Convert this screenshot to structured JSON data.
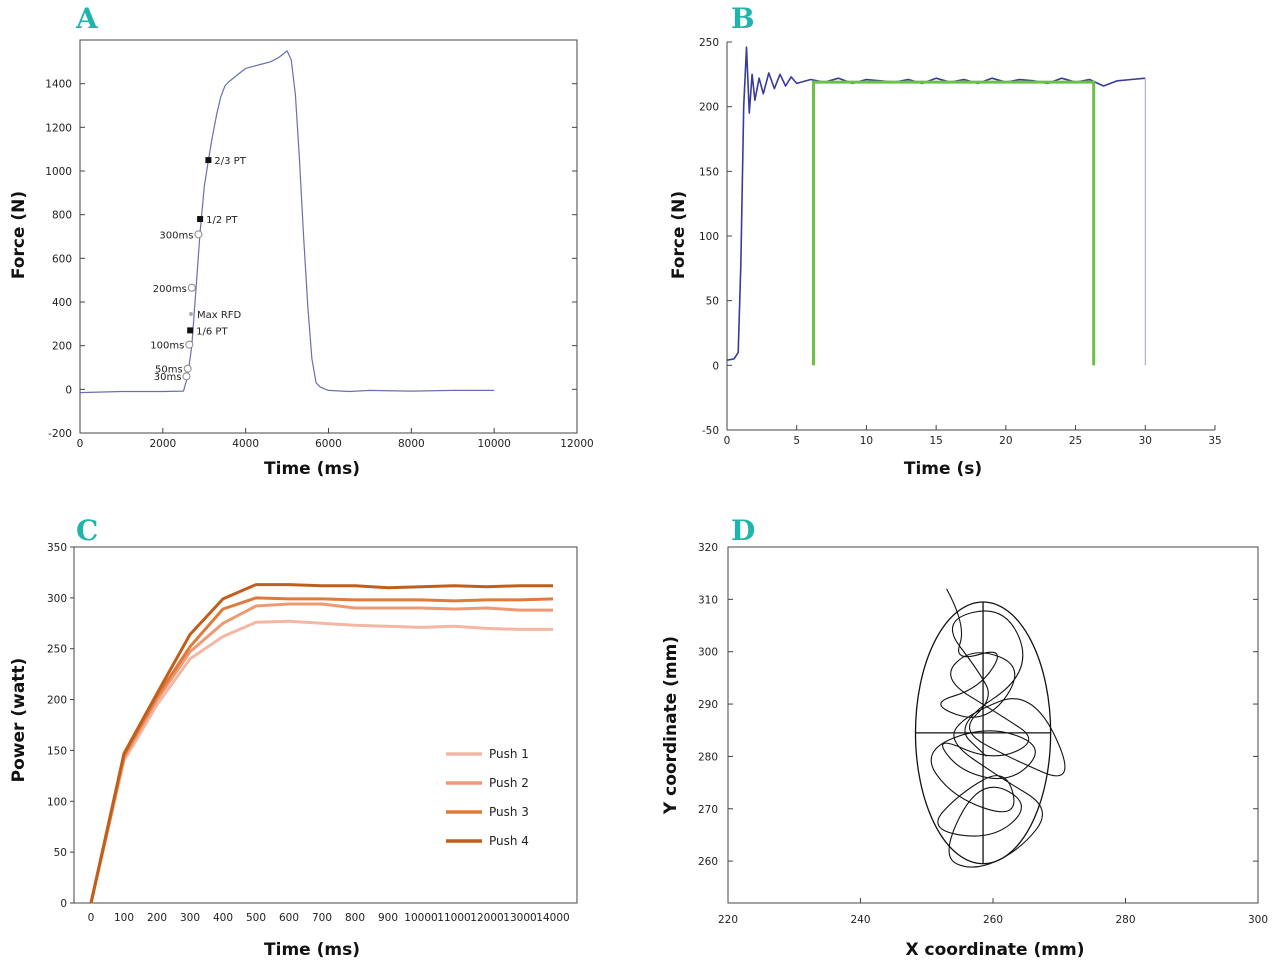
{
  "chart_data": [
    {
      "panel": "A",
      "type": "line",
      "xlabel": "Time (ms)",
      "ylabel": "Force (N)",
      "xlim": [
        0,
        12000
      ],
      "ylim": [
        -200,
        1600
      ],
      "xticks": [
        0,
        2000,
        4000,
        6000,
        8000,
        10000,
        12000
      ],
      "yticks": [
        -200,
        0,
        200,
        400,
        600,
        800,
        1000,
        1200,
        1400
      ],
      "series": [
        {
          "color": "#6a6fb0",
          "x": [
            0,
            1000,
            2000,
            2500,
            2600,
            2700,
            2800,
            2900,
            3000,
            3100,
            3200,
            3300,
            3400,
            3500,
            3600,
            3800,
            4000,
            4200,
            4400,
            4600,
            4800,
            5000,
            5100,
            5200,
            5300,
            5400,
            5500,
            5600,
            5700,
            5800,
            6000,
            6500,
            7000,
            8000,
            9000,
            10000
          ],
          "y": [
            -15,
            -10,
            -10,
            -8,
            60,
            200,
            460,
            720,
            930,
            1050,
            1160,
            1260,
            1340,
            1390,
            1410,
            1440,
            1470,
            1480,
            1490,
            1500,
            1520,
            1550,
            1510,
            1350,
            1050,
            700,
            380,
            140,
            30,
            10,
            -5,
            -10,
            -5,
            -8,
            -5,
            -5
          ]
        }
      ],
      "annotations": [
        {
          "label": "2/3 PT",
          "x": 3100,
          "y": 1050,
          "marker": "filled"
        },
        {
          "label": "1/2 PT",
          "x": 2900,
          "y": 780,
          "marker": "filled"
        },
        {
          "label": "300ms",
          "x": 2860,
          "y": 710,
          "marker": "open",
          "side": "left"
        },
        {
          "label": "200ms",
          "x": 2700,
          "y": 465,
          "marker": "open",
          "side": "left"
        },
        {
          "label": "Max RFD",
          "x": 2680,
          "y": 345,
          "marker": "dot"
        },
        {
          "label": "1/6 PT",
          "x": 2660,
          "y": 270,
          "marker": "filled"
        },
        {
          "label": "100ms",
          "x": 2640,
          "y": 205,
          "marker": "open",
          "side": "left"
        },
        {
          "label": "50ms",
          "x": 2600,
          "y": 95,
          "marker": "open",
          "side": "left"
        },
        {
          "label": "30ms",
          "x": 2570,
          "y": 60,
          "marker": "open",
          "side": "left"
        }
      ]
    },
    {
      "panel": "B",
      "type": "line",
      "xlabel": "Time (s)",
      "ylabel": "Force (N)",
      "xlim": [
        0,
        35
      ],
      "ylim": [
        -50,
        250
      ],
      "xticks": [
        0,
        5,
        10,
        15,
        20,
        25,
        30,
        35
      ],
      "yticks": [
        -50,
        0,
        50,
        100,
        150,
        200,
        250
      ],
      "series": [
        {
          "color": "#3a3a9a",
          "x": [
            0,
            0.5,
            0.8,
            1.0,
            1.2,
            1.4,
            1.6,
            1.8,
            2.0,
            2.3,
            2.6,
            3.0,
            3.4,
            3.8,
            4.2,
            4.6,
            5.0,
            6,
            7,
            8,
            9,
            10,
            11,
            12,
            13,
            14,
            15,
            16,
            17,
            18,
            19,
            20,
            21,
            22,
            23,
            24,
            25,
            26,
            27,
            28,
            29,
            30
          ],
          "y": [
            4,
            5,
            10,
            80,
            200,
            246,
            195,
            225,
            205,
            222,
            210,
            226,
            214,
            225,
            216,
            223,
            218,
            221,
            219,
            222,
            218,
            221,
            220,
            219,
            221,
            218,
            222,
            219,
            221,
            218,
            222,
            219,
            221,
            220,
            218,
            222,
            219,
            221,
            216,
            220,
            221,
            222
          ]
        }
      ],
      "window": {
        "color": "#6cc04a",
        "x_start": 6.2,
        "x_end": 26.3,
        "level": 219
      }
    },
    {
      "panel": "C",
      "type": "line",
      "xlabel": "Time (ms)",
      "ylabel": "Power (watt)",
      "ylim": [
        0,
        350
      ],
      "yticks": [
        0,
        50,
        100,
        150,
        200,
        250,
        300,
        350
      ],
      "categories": [
        "0",
        "100",
        "200",
        "300",
        "400",
        "500",
        "600",
        "700",
        "800",
        "900",
        "10000",
        "11000",
        "12000",
        "13000",
        "14000"
      ],
      "series": [
        {
          "name": "Push 1",
          "color": "#f4b7a3",
          "values": [
            0,
            140,
            195,
            240,
            262,
            276,
            277,
            275,
            273,
            272,
            271,
            272,
            270,
            269,
            269
          ]
        },
        {
          "name": "Push 2",
          "color": "#ed9a74",
          "values": [
            0,
            143,
            200,
            247,
            275,
            292,
            294,
            294,
            290,
            290,
            290,
            289,
            290,
            288,
            288
          ]
        },
        {
          "name": "Push 3",
          "color": "#e07a3c",
          "values": [
            0,
            145,
            203,
            252,
            289,
            300,
            299,
            299,
            298,
            298,
            298,
            297,
            298,
            298,
            299
          ]
        },
        {
          "name": "Push 4",
          "color": "#c05f1c",
          "values": [
            0,
            147,
            206,
            264,
            299,
            313,
            313,
            312,
            312,
            310,
            311,
            312,
            311,
            312,
            312
          ]
        }
      ]
    },
    {
      "panel": "D",
      "type": "line",
      "xlabel": "X coordinate (mm)",
      "ylabel": "Y coordinate (mm)",
      "xlim": [
        220,
        300
      ],
      "ylim": [
        252,
        320
      ],
      "xticks": [
        220,
        240,
        260,
        280,
        300
      ],
      "yticks": [
        260,
        270,
        280,
        290,
        300,
        310,
        320
      ],
      "ellipse": {
        "cx": 258.5,
        "cy": 284.5,
        "rx": 10.2,
        "ry": 25
      },
      "path": {
        "x": [
          253,
          256,
          254,
          262,
          258,
          250,
          259,
          265,
          257,
          252,
          261,
          267,
          260,
          251,
          255,
          263,
          268,
          259,
          249,
          254,
          264,
          262,
          255,
          250,
          260,
          266,
          258,
          252,
          257,
          264,
          269,
          261,
          253,
          256,
          266,
          273,
          262,
          255,
          260,
          258,
          252,
          262,
          266,
          254,
          259
        ],
        "y": [
          312,
          305,
          298,
          301,
          293,
          290,
          286,
          297,
          301,
          295,
          288,
          283,
          279,
          284,
          277,
          275,
          282,
          286,
          281,
          272,
          268,
          278,
          273,
          266,
          264,
          271,
          276,
          261,
          258,
          262,
          270,
          276,
          283,
          288,
          293,
          274,
          280,
          285,
          291,
          296,
          306,
          309,
          296,
          286,
          280
        ]
      }
    }
  ],
  "panels": {
    "A": "A",
    "B": "B",
    "C": "C",
    "D": "D"
  },
  "axes": {
    "a": {
      "xlabel": "Time (ms)",
      "ylabel": "Force (N)"
    },
    "b": {
      "xlabel": "Time (s)",
      "ylabel": "Force (N)"
    },
    "c": {
      "xlabel": "Time (ms)",
      "ylabel": "Power (watt)"
    },
    "d": {
      "xlabel": "X coordinate (mm)",
      "ylabel": "Y coordinate (mm)"
    }
  }
}
